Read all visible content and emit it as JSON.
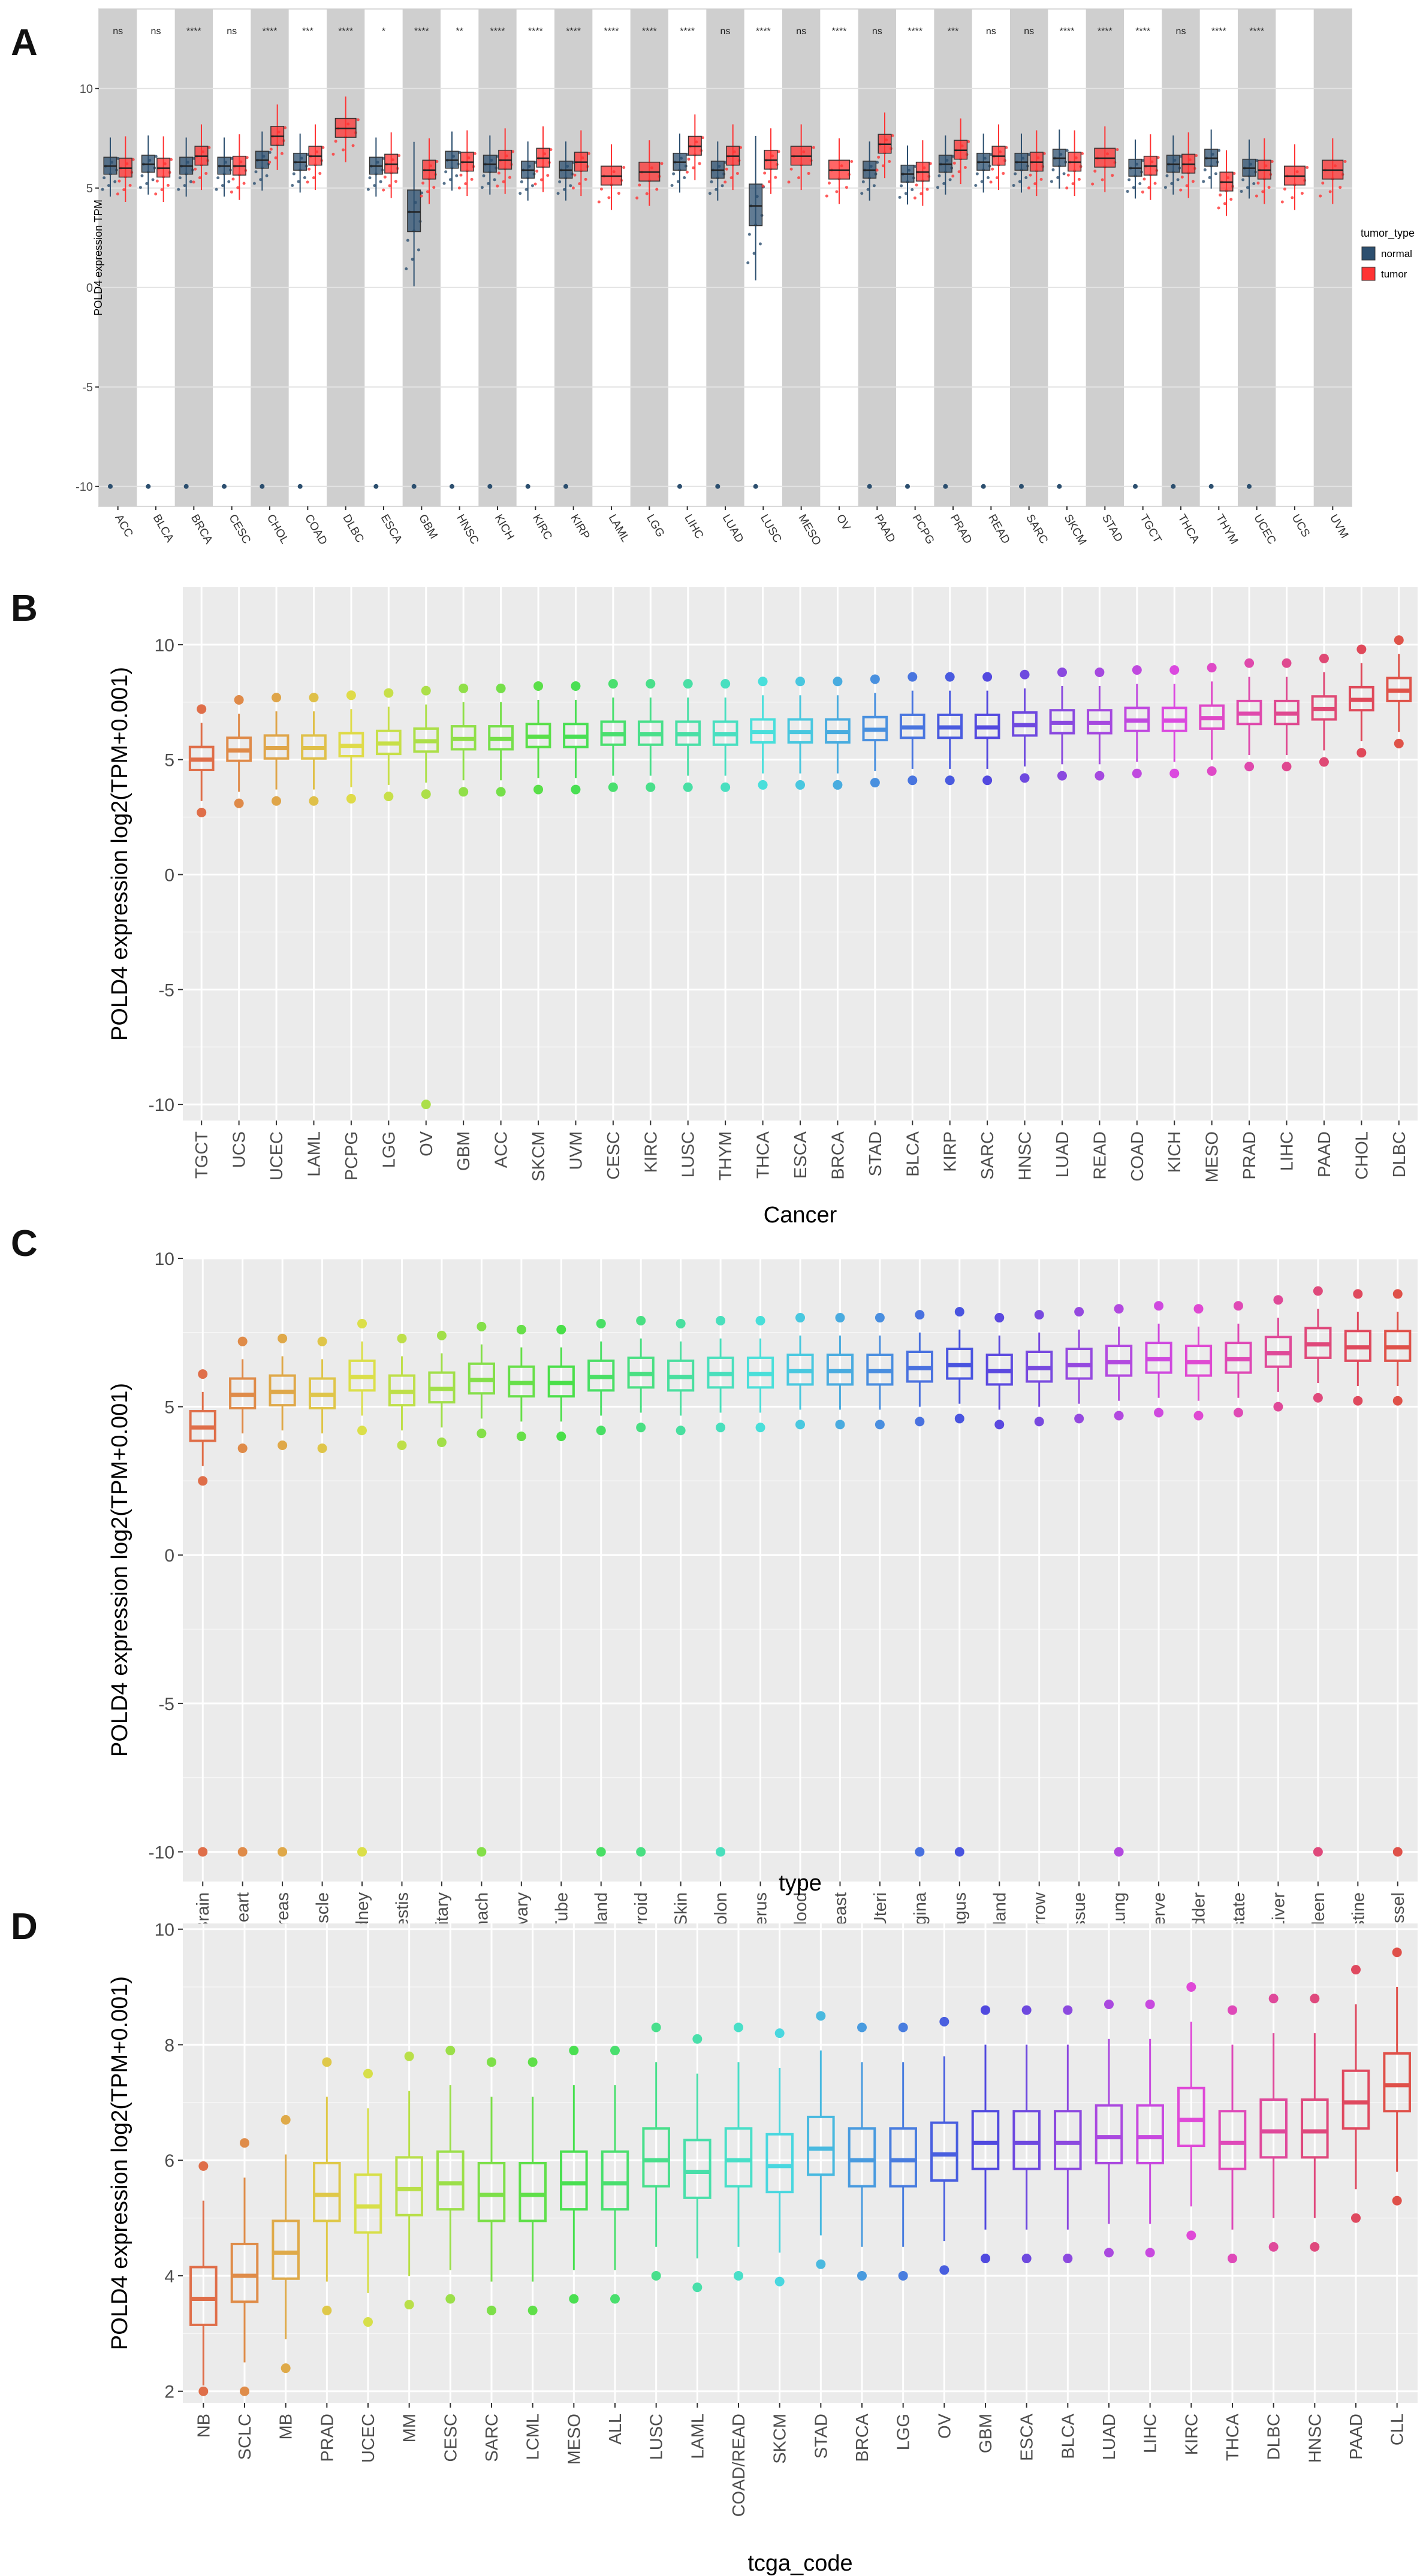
{
  "panel_letters": {
    "A": "A",
    "B": "B",
    "C": "C",
    "D": "D"
  },
  "chart_data": [
    {
      "id": "A",
      "type": "boxplot",
      "title": "",
      "xlabel": "",
      "ylabel": "POLD4 expression TPM",
      "ylim": [
        -11,
        14
      ],
      "yticks": [
        -10,
        -5,
        0,
        5,
        10
      ],
      "legend": {
        "title": "tumor_type",
        "position": "right",
        "entries": [
          {
            "name": "normal",
            "color": "#2c4f6f"
          },
          {
            "name": "tumor",
            "color": "#ff3333"
          }
        ]
      },
      "categories": [
        "ACC",
        "BLCA",
        "BRCA",
        "CESC",
        "CHOL",
        "COAD",
        "DLBC",
        "ESCA",
        "GBM",
        "HNSC",
        "KICH",
        "KIRC",
        "KIRP",
        "LAML",
        "LGG",
        "LIHC",
        "LUAD",
        "LUSC",
        "MESO",
        "OV",
        "PAAD",
        "PCPG",
        "PRAD",
        "READ",
        "SARC",
        "SKCM",
        "STAD",
        "TGCT",
        "THCA",
        "THYM",
        "UCEC",
        "UCS",
        "UVM"
      ],
      "significance": [
        "ns",
        "ns",
        "****",
        "ns",
        "****",
        "***",
        "****",
        "*",
        "****",
        "**",
        "****",
        "****",
        "****",
        "****",
        "****",
        "****",
        "ns",
        "****",
        "ns",
        "****",
        "ns",
        "****",
        "***",
        "ns",
        "ns",
        "****",
        "****",
        "****",
        "ns",
        "****",
        "****",
        "",
        ""
      ],
      "normal_median": [
        6.1,
        6.2,
        6.1,
        6.1,
        6.4,
        6.3,
        null,
        6.1,
        3.8,
        6.4,
        6.2,
        5.9,
        5.9,
        null,
        null,
        6.3,
        5.9,
        4.1,
        null,
        null,
        5.9,
        5.7,
        6.2,
        6.3,
        6.3,
        6.5,
        null,
        6.0,
        6.2,
        6.5,
        6.0,
        null,
        null
      ],
      "tumor_median": [
        6.0,
        6.0,
        6.6,
        6.1,
        7.6,
        6.6,
        8.0,
        6.2,
        5.9,
        6.3,
        6.4,
        6.5,
        6.3,
        5.6,
        5.8,
        7.1,
        6.6,
        6.4,
        6.6,
        5.9,
        7.2,
        5.8,
        6.9,
        6.6,
        6.3,
        6.3,
        6.5,
        6.1,
        6.2,
        5.3,
        5.9,
        5.6,
        5.9
      ]
    },
    {
      "id": "B",
      "type": "boxplot",
      "xlabel": "Cancer",
      "ylabel": "POLD4 expression log2(TPM+0.001)",
      "ylim": [
        -10.7,
        12.5
      ],
      "yticks": [
        -10,
        -5,
        0,
        5,
        10
      ],
      "categories": [
        "TGCT",
        "UCS",
        "UCEC",
        "LAML",
        "PCPG",
        "LGG",
        "OV",
        "GBM",
        "ACC",
        "SKCM",
        "UVM",
        "CESC",
        "KIRC",
        "LUSC",
        "THYM",
        "THCA",
        "ESCA",
        "BRCA",
        "STAD",
        "BLCA",
        "KIRP",
        "SARC",
        "HNSC",
        "LUAD",
        "READ",
        "COAD",
        "KICH",
        "MESO",
        "PRAD",
        "LIHC",
        "PAAD",
        "CHOL",
        "DLBC"
      ],
      "medians": [
        5.0,
        5.4,
        5.5,
        5.5,
        5.6,
        5.7,
        5.8,
        5.9,
        5.9,
        6.0,
        6.0,
        6.1,
        6.1,
        6.1,
        6.1,
        6.2,
        6.2,
        6.2,
        6.3,
        6.4,
        6.4,
        6.4,
        6.5,
        6.6,
        6.6,
        6.7,
        6.7,
        6.8,
        7.0,
        7.0,
        7.2,
        7.6,
        8.0
      ]
    },
    {
      "id": "C",
      "type": "boxplot",
      "xlabel": "type",
      "ylabel": "POLD4 expression log2(TPM+0.001)",
      "ylim": [
        -11,
        10
      ],
      "yticks": [
        -10,
        -5,
        0,
        5,
        10
      ],
      "categories": [
        "Brain",
        "Heart",
        "Pancreas",
        "Muscle",
        "Kidney",
        "Testis",
        "Pituitary",
        "Stomach",
        "Ovary",
        "Fallopian Tube",
        "Adrenal Gland",
        "Thyroid",
        "Skin",
        "Colon",
        "Uterus",
        "Blood",
        "Breast",
        "Cervix Uteri",
        "Vagina",
        "Esophagus",
        "Salivary Gland",
        "Bone Marrow",
        "Adipose Tissue",
        "Lung",
        "Nerve",
        "Bladder",
        "Prostate",
        "Liver",
        "Spleen",
        "Small Intestine",
        "Blood Vessel"
      ],
      "medians": [
        4.3,
        5.4,
        5.5,
        5.4,
        6.0,
        5.5,
        5.6,
        5.9,
        5.8,
        5.8,
        6.0,
        6.1,
        6.0,
        6.1,
        6.1,
        6.2,
        6.2,
        6.2,
        6.3,
        6.4,
        6.2,
        6.3,
        6.4,
        6.5,
        6.6,
        6.5,
        6.6,
        6.8,
        7.1,
        7.0,
        7.0
      ]
    },
    {
      "id": "D",
      "type": "boxplot",
      "xlabel": "tcga_code",
      "ylabel": "POLD4 expression log2(TPM+0.001)",
      "ylim": [
        1.8,
        10.1
      ],
      "yticks": [
        2,
        4,
        6,
        8,
        10
      ],
      "categories": [
        "NB",
        "SCLC",
        "MB",
        "PRAD",
        "UCEC",
        "MM",
        "CESC",
        "SARC",
        "LCML",
        "MESO",
        "ALL",
        "LUSC",
        "LAML",
        "COAD/READ",
        "SKCM",
        "STAD",
        "BRCA",
        "LGG",
        "OV",
        "GBM",
        "ESCA",
        "BLCA",
        "LUAD",
        "LIHC",
        "KIRC",
        "THCA",
        "DLBC",
        "HNSC",
        "PAAD",
        "CLL"
      ],
      "medians": [
        3.6,
        4.0,
        4.4,
        5.4,
        5.2,
        5.5,
        5.6,
        5.4,
        5.4,
        5.6,
        5.6,
        6.0,
        5.8,
        6.0,
        5.9,
        6.2,
        6.0,
        6.0,
        6.1,
        6.3,
        6.3,
        6.3,
        6.4,
        6.4,
        6.7,
        6.3,
        6.5,
        6.5,
        7.0,
        7.3
      ]
    }
  ]
}
